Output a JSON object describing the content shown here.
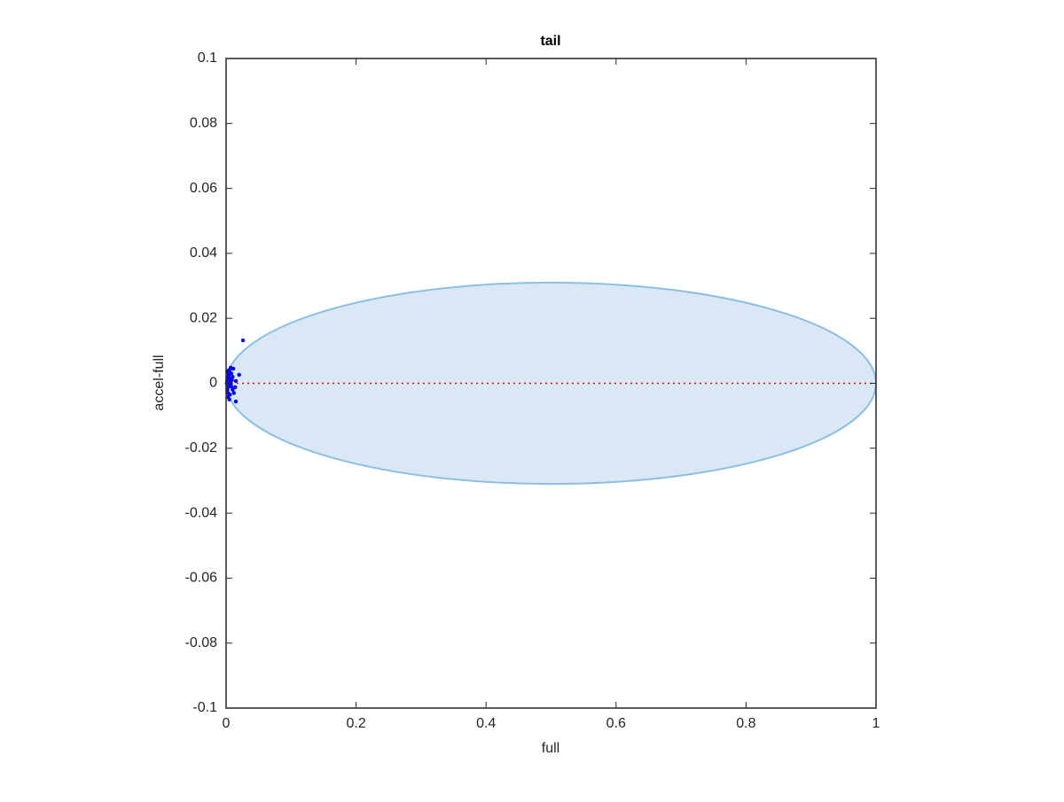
{
  "chart_data": {
    "type": "scatter",
    "title": "tail",
    "x_label": "full",
    "y_label": "accel-full",
    "xlim": [
      0,
      1
    ],
    "ylim": [
      -0.1,
      0.1
    ],
    "xticks": [
      0,
      0.2,
      0.4,
      0.6,
      0.8,
      1
    ],
    "yticks": [
      -0.1,
      -0.08,
      -0.06,
      -0.04,
      -0.02,
      0,
      0.02,
      0.04,
      0.06,
      0.08,
      0.1
    ],
    "ellipse": {
      "center": [
        0.5,
        0
      ],
      "radii": [
        0.5,
        0.031
      ],
      "fill": "#d9e8f4",
      "stroke": "#8cbfe2"
    },
    "hline": {
      "y": 0,
      "color": "#ff0000"
    },
    "series": [
      {
        "color": "#0000ff",
        "x": [
          0.026,
          0.004,
          0.007,
          0.011,
          0.02,
          0.015,
          0.014,
          0.015,
          0.005,
          0.003,
          0.002,
          0.004,
          0.006,
          0.008,
          0.01,
          0.003,
          0.005,
          0.007,
          0.002,
          0.009,
          0.012,
          0.004,
          0.006,
          0.001,
          0.008,
          0.003,
          0.005,
          0.01,
          0.002,
          0.007
        ],
        "y": [
          0.0132,
          0.004,
          0.0048,
          0.0045,
          0.0026,
          0.0007,
          -0.0012,
          -0.0056,
          -0.005,
          0.002,
          0.001,
          -0.001,
          0.0,
          0.003,
          -0.002,
          -0.003,
          0.0015,
          -0.0005,
          0.0035,
          0.001,
          -0.003,
          0.0025,
          -0.0035,
          0.0,
          -0.001,
          -0.0042,
          0.0038,
          0.002,
          -0.002,
          0.0005
        ]
      }
    ]
  }
}
